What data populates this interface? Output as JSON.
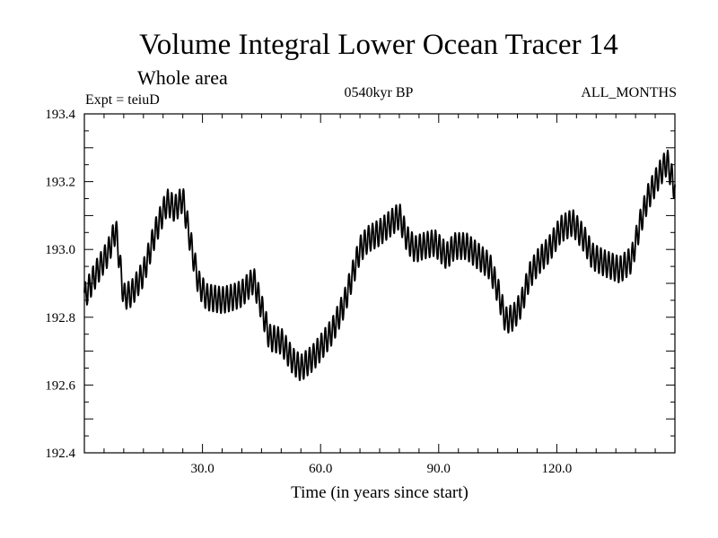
{
  "chart_data": {
    "type": "line",
    "title": "Volume Integral Lower Ocean Tracer 14",
    "subtitle": "Whole area",
    "experiment": "Expt = teiuD",
    "period": "0540kyr BP",
    "months": "ALL_MONTHS",
    "xlabel": "Time (in years since start)",
    "ylabel": "",
    "xlim": [
      0,
      150
    ],
    "ylim": [
      192.4,
      193.4
    ],
    "x_ticks": [
      30,
      60,
      90,
      120
    ],
    "x_tick_labels": [
      "30.0",
      "60.0",
      "90.0",
      "120.0"
    ],
    "y_ticks": [
      192.4,
      192.6,
      192.8,
      193.0,
      193.2,
      193.4
    ],
    "y_tick_labels": [
      "192.4",
      "192.6",
      "192.8",
      "193.0",
      "193.2",
      "193.4"
    ],
    "grid": false,
    "series": [
      {
        "name": "Lower Ocean Tracer 14",
        "annual_cycle_amplitude": 0.04,
        "x": [
          0,
          3,
          6,
          8,
          10,
          12,
          15,
          18,
          21,
          23,
          25,
          27,
          29,
          31,
          35,
          38,
          40,
          43,
          45,
          47,
          50,
          53,
          55,
          58,
          60,
          63,
          66,
          68,
          70,
          72,
          75,
          78,
          80,
          82,
          84,
          86,
          89,
          92,
          94,
          97,
          100,
          103,
          105,
          107,
          109,
          111,
          113,
          115,
          118,
          121,
          124,
          127,
          129,
          132,
          134,
          136,
          139,
          141,
          143,
          146,
          148,
          150
        ],
        "y": [
          192.86,
          192.93,
          192.99,
          193.06,
          192.86,
          192.87,
          192.93,
          193.05,
          193.14,
          193.12,
          193.15,
          193.02,
          192.9,
          192.86,
          192.85,
          192.86,
          192.87,
          192.91,
          192.83,
          192.74,
          192.73,
          192.67,
          192.65,
          192.68,
          192.71,
          192.76,
          192.84,
          192.92,
          193.0,
          193.03,
          193.05,
          193.08,
          193.1,
          193.03,
          193.0,
          193.01,
          193.02,
          192.98,
          193.01,
          193.01,
          192.98,
          192.95,
          192.88,
          192.79,
          192.8,
          192.84,
          192.92,
          192.96,
          193.0,
          193.06,
          193.08,
          193.03,
          192.98,
          192.96,
          192.95,
          192.94,
          192.97,
          193.07,
          193.15,
          193.22,
          193.26,
          193.18
        ]
      }
    ]
  }
}
